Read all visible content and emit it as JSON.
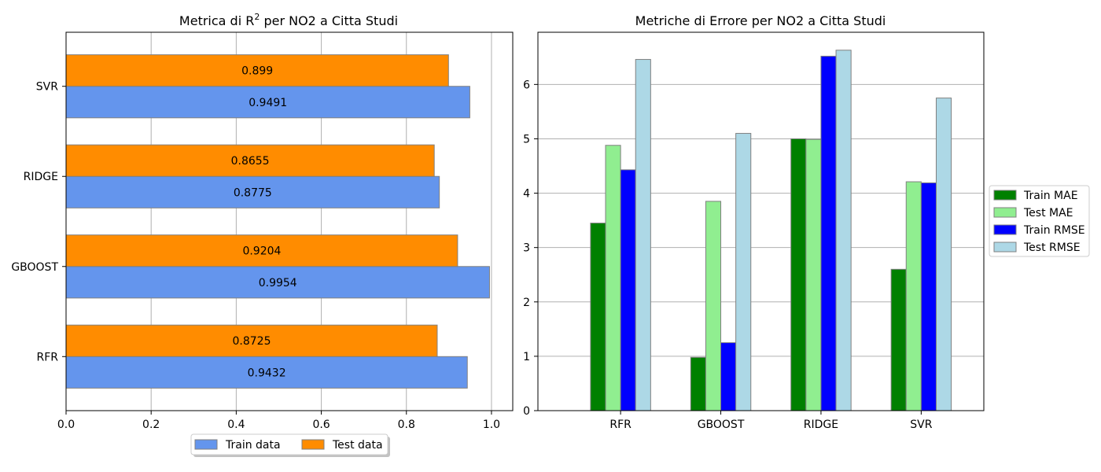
{
  "chart_data": [
    {
      "type": "bar",
      "orientation": "horizontal",
      "title_prefix": "Metrica di R",
      "title_sup": "2",
      "title_suffix": " per NO2 a Citta Studi",
      "categories": [
        "RFR",
        "GBOOST",
        "RIDGE",
        "SVR"
      ],
      "series": [
        {
          "name": "Train data",
          "values": [
            0.9432,
            0.9954,
            0.8775,
            0.9491
          ],
          "color": "#6495ED"
        },
        {
          "name": "Test data",
          "values": [
            0.8725,
            0.9204,
            0.8655,
            0.899
          ],
          "color": "#FF8C00"
        }
      ],
      "xlim": [
        0,
        1.05
      ],
      "xticks": [
        0.0,
        0.2,
        0.4,
        0.6,
        0.8,
        1.0
      ],
      "xtick_labels": [
        "0.0",
        "0.2",
        "0.4",
        "0.6",
        "0.8",
        "1.0"
      ],
      "grid": "x",
      "legend_position": "bottom-center"
    },
    {
      "type": "bar",
      "title": "Metriche di Errore per NO2 a Citta Studi",
      "categories": [
        "RFR",
        "GBOOST",
        "RIDGE",
        "SVR"
      ],
      "series": [
        {
          "name": "Train MAE",
          "values": [
            3.45,
            0.98,
            5.0,
            2.6
          ],
          "color": "#008000"
        },
        {
          "name": "Test MAE",
          "values": [
            4.88,
            3.85,
            4.99,
            4.21
          ],
          "color": "#90EE90"
        },
        {
          "name": "Train RMSE",
          "values": [
            4.43,
            1.25,
            6.52,
            4.19
          ],
          "color": "#0000FF"
        },
        {
          "name": "Test RMSE",
          "values": [
            6.46,
            5.1,
            6.63,
            5.75
          ],
          "color": "#ADD8E6"
        }
      ],
      "ylim": [
        0,
        6.96
      ],
      "yticks": [
        0,
        1,
        2,
        3,
        4,
        5,
        6
      ],
      "ytick_labels": [
        "0",
        "1",
        "2",
        "3",
        "4",
        "5",
        "6"
      ],
      "grid": "y",
      "legend_position": "right"
    }
  ]
}
